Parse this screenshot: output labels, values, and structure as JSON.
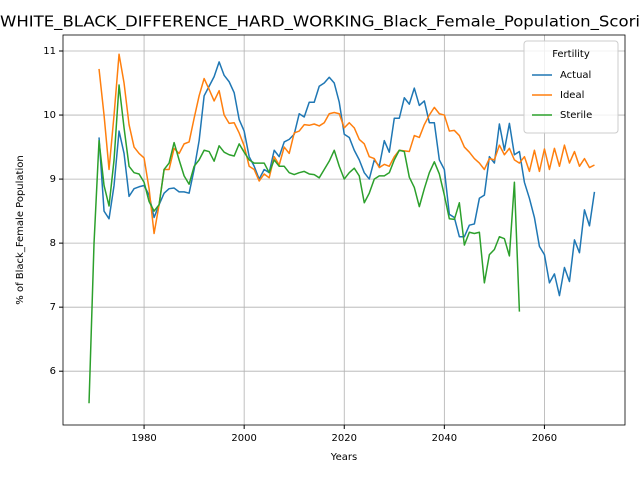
{
  "chart_data": {
    "type": "line",
    "title": "WHITE_BLACK_DIFFERENCE_HARD_WORKING_Black_Female_Population_Scori",
    "xlabel": "Years",
    "ylabel": "% of Black_Female Population",
    "x": [
      1969,
      1970,
      1971,
      1972,
      1973,
      1974,
      1975,
      1976,
      1977,
      1978,
      1979,
      1980,
      1981,
      1982,
      1983,
      1984,
      1985,
      1986,
      1987,
      1988,
      1989,
      1990,
      1991,
      1992,
      1993,
      1994,
      1995,
      1996,
      1997,
      1998,
      1999,
      2000,
      2001,
      2002,
      2003,
      2004,
      2005,
      2006,
      2007,
      2008,
      2009,
      2010,
      2011,
      2012,
      2013,
      2014,
      2015,
      2016,
      2017,
      2018,
      2019,
      2020,
      2021,
      2022,
      2023,
      2024,
      2025,
      2026,
      2027,
      2028,
      2029,
      2030,
      2031,
      2032,
      2033,
      2034,
      2035,
      2036,
      2037,
      2038,
      2039,
      2040,
      2041,
      2042,
      2043,
      2044,
      2045,
      2046,
      2047,
      2048,
      2049,
      2050,
      2051,
      2052,
      2053,
      2054,
      2055,
      2056,
      2057,
      2058,
      2059,
      2060,
      2061,
      2062,
      2063,
      2064,
      2065,
      2066,
      2067,
      2068,
      2069,
      2070
    ],
    "series": [
      {
        "name": "Actual",
        "color": "#1f77b4",
        "values": [
          null,
          null,
          9.65,
          8.5,
          8.38,
          8.9,
          9.75,
          9.4,
          8.73,
          8.85,
          8.88,
          8.9,
          8.75,
          8.4,
          8.6,
          8.78,
          8.85,
          8.86,
          8.8,
          8.8,
          8.78,
          9.15,
          9.6,
          10.3,
          10.45,
          10.6,
          10.83,
          10.62,
          10.52,
          10.35,
          9.93,
          9.75,
          9.35,
          9.2,
          9.0,
          9.15,
          9.1,
          9.45,
          9.35,
          9.58,
          9.62,
          9.7,
          10.02,
          9.97,
          10.2,
          10.2,
          10.45,
          10.5,
          10.59,
          10.5,
          10.2,
          9.7,
          9.65,
          9.45,
          9.3,
          9.1,
          9.0,
          9.3,
          9.2,
          9.6,
          9.42,
          9.95,
          9.95,
          10.27,
          10.17,
          10.42,
          10.15,
          10.22,
          9.88,
          9.88,
          9.3,
          9.15,
          8.45,
          8.4,
          8.1,
          8.1,
          8.28,
          8.3,
          8.7,
          8.75,
          9.35,
          9.25,
          9.86,
          9.45,
          9.87,
          9.38,
          9.43,
          8.95,
          8.7,
          8.4,
          7.95,
          7.82,
          7.38,
          7.52,
          7.18,
          7.62,
          7.4,
          8.05,
          7.85,
          8.52,
          8.27,
          8.8
        ]
      },
      {
        "name": "Ideal",
        "color": "#ff7f0e",
        "values": [
          null,
          null,
          10.72,
          10.0,
          9.15,
          10.0,
          10.95,
          10.5,
          9.85,
          9.5,
          9.4,
          9.33,
          8.85,
          8.15,
          8.6,
          9.15,
          9.15,
          9.48,
          9.4,
          9.55,
          9.58,
          9.95,
          10.3,
          10.57,
          10.4,
          10.22,
          10.38,
          10.0,
          9.87,
          9.88,
          9.72,
          9.52,
          9.2,
          9.15,
          8.97,
          9.08,
          9.02,
          9.35,
          9.22,
          9.5,
          9.4,
          9.72,
          9.75,
          9.85,
          9.84,
          9.86,
          9.83,
          9.88,
          10.02,
          10.04,
          10.02,
          9.8,
          9.88,
          9.8,
          9.62,
          9.55,
          9.35,
          9.32,
          9.18,
          9.23,
          9.2,
          9.35,
          9.45,
          9.44,
          9.43,
          9.68,
          9.65,
          9.85,
          10.0,
          10.12,
          10.02,
          10.0,
          9.75,
          9.76,
          9.68,
          9.5,
          9.42,
          9.32,
          9.25,
          9.15,
          9.32,
          9.3,
          9.53,
          9.38,
          9.48,
          9.3,
          9.25,
          9.35,
          9.12,
          9.45,
          9.12,
          9.47,
          9.15,
          9.48,
          9.2,
          9.53,
          9.25,
          9.43,
          9.2,
          9.32,
          9.18,
          9.22
        ]
      },
      {
        "name": "Sterile",
        "color": "#2ca02c",
        "values": [
          5.5,
          8.0,
          9.6,
          8.9,
          8.58,
          9.3,
          10.47,
          9.8,
          9.2,
          9.1,
          9.08,
          8.95,
          8.65,
          8.5,
          8.6,
          9.15,
          9.25,
          9.57,
          9.3,
          9.05,
          8.92,
          9.2,
          9.3,
          9.45,
          9.43,
          9.28,
          9.52,
          9.42,
          9.38,
          9.36,
          9.55,
          9.42,
          9.3,
          9.25,
          9.25,
          9.25,
          9.1,
          9.3,
          9.2,
          9.2,
          9.1,
          9.07,
          9.1,
          9.12,
          9.08,
          9.07,
          9.02,
          9.15,
          9.28,
          9.45,
          9.2,
          9.0,
          9.1,
          9.17,
          9.05,
          8.63,
          8.78,
          9.0,
          9.05,
          9.05,
          9.1,
          9.3,
          9.45,
          9.43,
          9.03,
          8.87,
          8.57,
          8.85,
          9.1,
          9.27,
          9.08,
          8.75,
          8.38,
          8.37,
          8.63,
          7.97,
          8.17,
          8.15,
          8.17,
          7.38,
          7.82,
          7.9,
          8.1,
          8.07,
          7.8,
          8.95,
          6.93,
          null,
          null,
          null,
          null,
          null,
          null,
          null,
          null,
          null,
          null,
          null,
          null,
          null,
          null,
          null
        ]
      }
    ],
    "xlim": [
      1963.8,
      2076.1
    ],
    "ylim": [
      5.16,
      11.25
    ],
    "xticks": [
      1980,
      2000,
      2020,
      2040,
      2060
    ],
    "yticks": [
      6,
      7,
      8,
      9,
      10,
      11
    ],
    "grid": true,
    "legend": {
      "title": "Fertility",
      "loc": "upper right"
    }
  }
}
